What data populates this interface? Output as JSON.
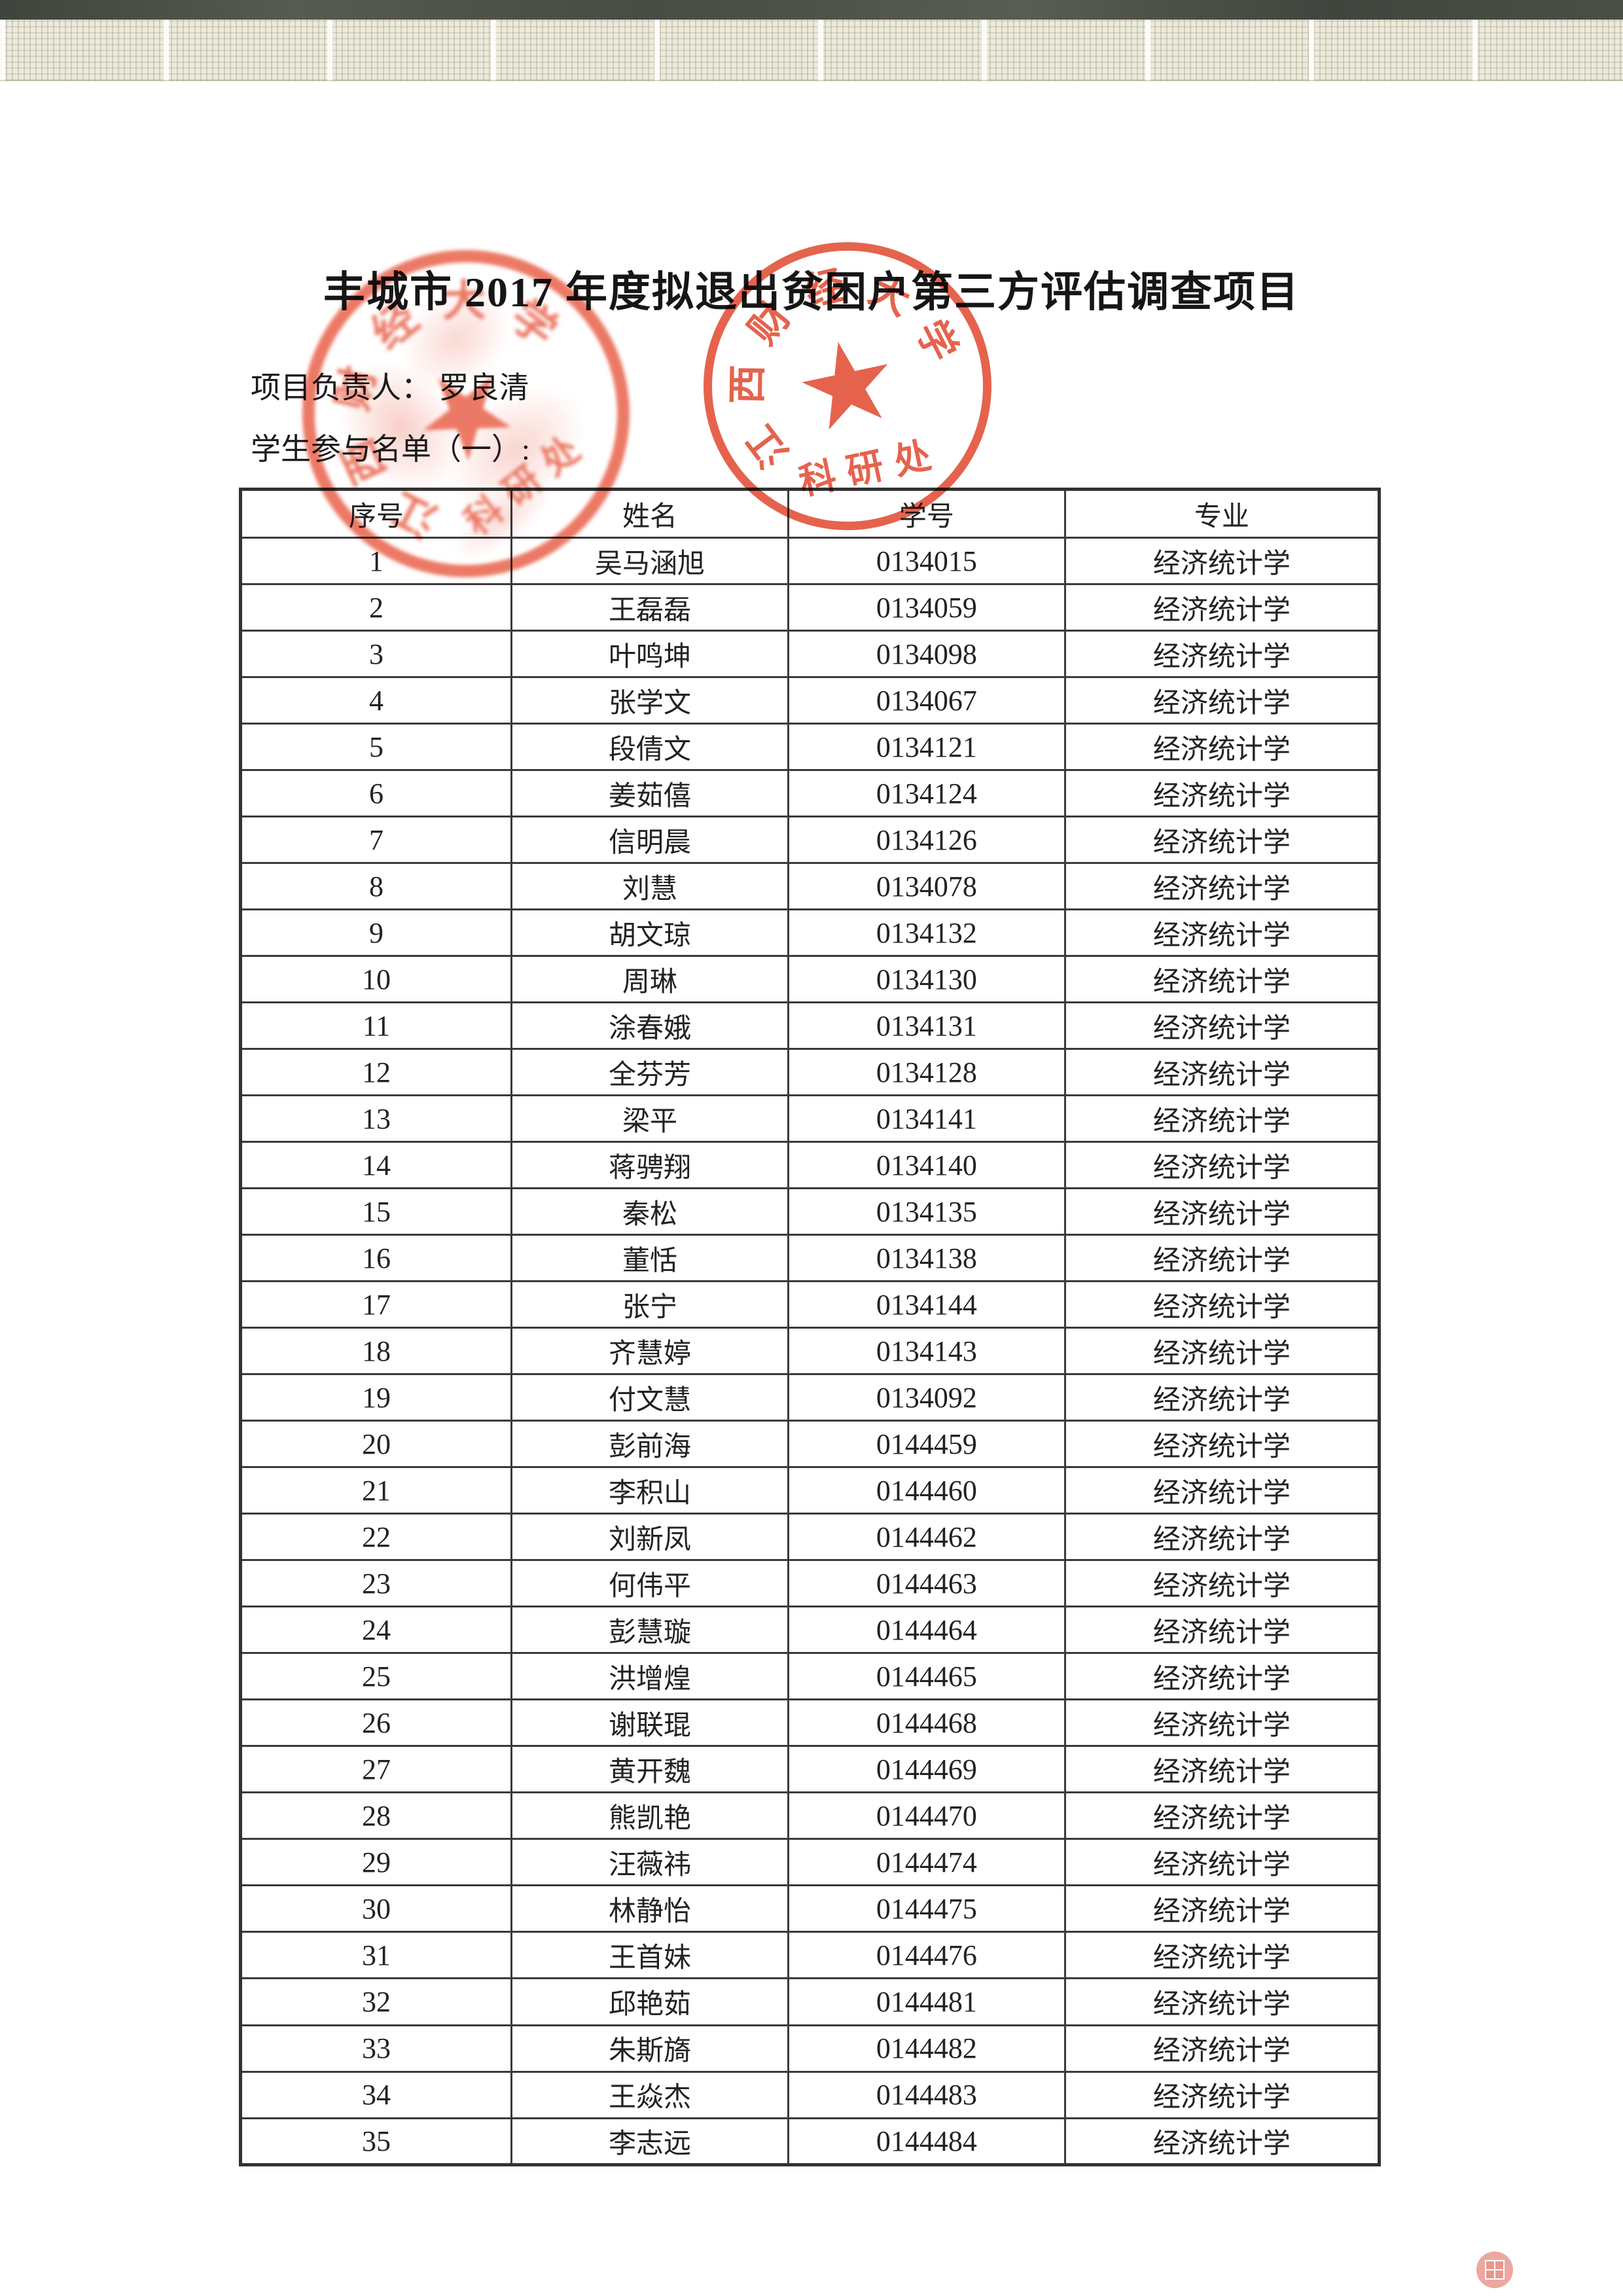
{
  "page": {
    "title": "丰城市 2017 年度拟退出贫困户第三方评估调查项目",
    "project_leader_line": "项目负责人： 罗良清",
    "list_label_line": "学生参与名单（一）:"
  },
  "table": {
    "columns": [
      "序号",
      "姓名",
      "学号",
      "专业"
    ],
    "rows": [
      {
        "no": "1",
        "name": "吴马涵旭",
        "student_id": "0134015",
        "major": "经济统计学"
      },
      {
        "no": "2",
        "name": "王磊磊",
        "student_id": "0134059",
        "major": "经济统计学"
      },
      {
        "no": "3",
        "name": "叶鸣坤",
        "student_id": "0134098",
        "major": "经济统计学"
      },
      {
        "no": "4",
        "name": "张学文",
        "student_id": "0134067",
        "major": "经济统计学"
      },
      {
        "no": "5",
        "name": "段倩文",
        "student_id": "0134121",
        "major": "经济统计学"
      },
      {
        "no": "6",
        "name": "姜茹僖",
        "student_id": "0134124",
        "major": "经济统计学"
      },
      {
        "no": "7",
        "name": "信明晨",
        "student_id": "0134126",
        "major": "经济统计学"
      },
      {
        "no": "8",
        "name": "刘慧",
        "student_id": "0134078",
        "major": "经济统计学"
      },
      {
        "no": "9",
        "name": "胡文琼",
        "student_id": "0134132",
        "major": "经济统计学"
      },
      {
        "no": "10",
        "name": "周琳",
        "student_id": "0134130",
        "major": "经济统计学"
      },
      {
        "no": "11",
        "name": "涂春娥",
        "student_id": "0134131",
        "major": "经济统计学"
      },
      {
        "no": "12",
        "name": "全芬芳",
        "student_id": "0134128",
        "major": "经济统计学"
      },
      {
        "no": "13",
        "name": "梁平",
        "student_id": "0134141",
        "major": "经济统计学"
      },
      {
        "no": "14",
        "name": "蒋骋翔",
        "student_id": "0134140",
        "major": "经济统计学"
      },
      {
        "no": "15",
        "name": "秦松",
        "student_id": "0134135",
        "major": "经济统计学"
      },
      {
        "no": "16",
        "name": "董恬",
        "student_id": "0134138",
        "major": "经济统计学"
      },
      {
        "no": "17",
        "name": "张宁",
        "student_id": "0134144",
        "major": "经济统计学"
      },
      {
        "no": "18",
        "name": "齐慧婷",
        "student_id": "0134143",
        "major": "经济统计学"
      },
      {
        "no": "19",
        "name": "付文慧",
        "student_id": "0134092",
        "major": "经济统计学"
      },
      {
        "no": "20",
        "name": "彭前海",
        "student_id": "0144459",
        "major": "经济统计学"
      },
      {
        "no": "21",
        "name": "李积山",
        "student_id": "0144460",
        "major": "经济统计学"
      },
      {
        "no": "22",
        "name": "刘新凤",
        "student_id": "0144462",
        "major": "经济统计学"
      },
      {
        "no": "23",
        "name": "何伟平",
        "student_id": "0144463",
        "major": "经济统计学"
      },
      {
        "no": "24",
        "name": "彭慧璇",
        "student_id": "0144464",
        "major": "经济统计学"
      },
      {
        "no": "25",
        "name": "洪增煌",
        "student_id": "0144465",
        "major": "经济统计学"
      },
      {
        "no": "26",
        "name": "谢联琨",
        "student_id": "0144468",
        "major": "经济统计学"
      },
      {
        "no": "27",
        "name": "黄开魏",
        "student_id": "0144469",
        "major": "经济统计学"
      },
      {
        "no": "28",
        "name": "熊凯艳",
        "student_id": "0144470",
        "major": "经济统计学"
      },
      {
        "no": "29",
        "name": "汪薇祎",
        "student_id": "0144474",
        "major": "经济统计学"
      },
      {
        "no": "30",
        "name": "林静怡",
        "student_id": "0144475",
        "major": "经济统计学"
      },
      {
        "no": "31",
        "name": "王首妹",
        "student_id": "0144476",
        "major": "经济统计学"
      },
      {
        "no": "32",
        "name": "邱艳茹",
        "student_id": "0144481",
        "major": "经济统计学"
      },
      {
        "no": "33",
        "name": "朱斯旖",
        "student_id": "0144482",
        "major": "经济统计学"
      },
      {
        "no": "34",
        "name": "王焱杰",
        "student_id": "0144483",
        "major": "经济统计学"
      },
      {
        "no": "35",
        "name": "李志远",
        "student_id": "0144484",
        "major": "经济统计学"
      }
    ]
  },
  "stamps": {
    "university": "江西财经大学",
    "office": "科研处",
    "color": "#e3573f"
  }
}
